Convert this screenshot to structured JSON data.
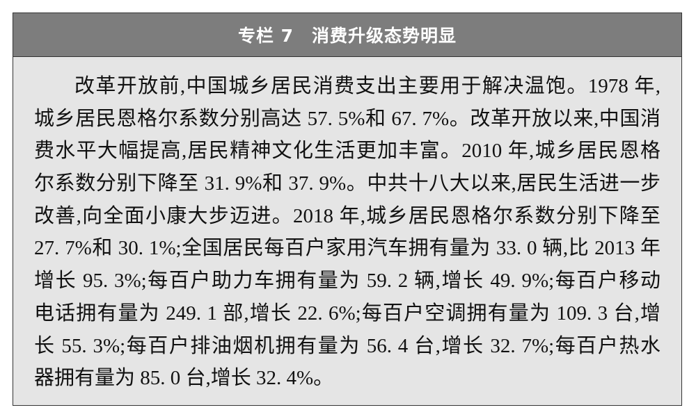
{
  "box": {
    "title": "专栏 7　消费升级态势明显",
    "lines": [
      "改革开放前,中国城乡居民消费支出主要用于解决温饱。1978 年,",
      "城乡居民恩格尔系数分别高达 57. 5%和 67. 7%。改革开放以来,中国消",
      "费水平大幅提高,居民精神文化生活更加丰富。2010 年,城乡居民恩格",
      "尔系数分别下降至 31. 9%和 37. 9%。中共十八大以来,居民生活进一步",
      "改善,向全面小康大步迈进。2018 年,城乡居民恩格尔系数分别下降至",
      "27. 7%和 30. 1%;全国居民每百户家用汽车拥有量为 33. 0 辆,比 2013 年",
      "增长 95. 3%;每百户助力车拥有量为 59. 2 辆,增长 49. 9%;每百户移动",
      "电话拥有量为 249. 1 部,增长 22. 6%;每百户空调拥有量为 109. 3 台,增",
      "长 55. 3%;每百户排油烟机拥有量为 56. 4 台,增长 32. 7%;每百户热水",
      "器拥有量为 85. 0 台,增长 32. 4%。"
    ]
  }
}
